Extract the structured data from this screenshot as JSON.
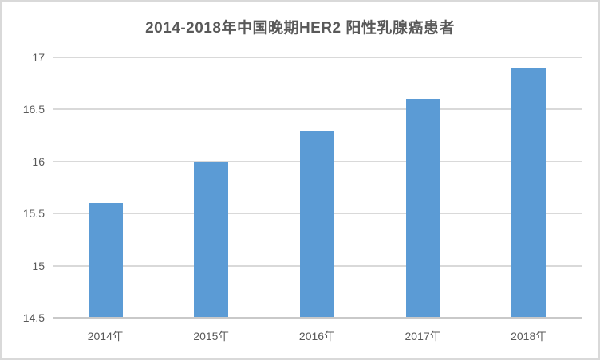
{
  "chart_data": {
    "type": "bar",
    "title": "2014-2018年中国晚期HER2 阳性乳腺癌患者",
    "categories": [
      "2014年",
      "2015年",
      "2016年",
      "2017年",
      "2018年"
    ],
    "values": [
      15.6,
      16.0,
      16.3,
      16.6,
      16.9
    ],
    "xlabel": "",
    "ylabel": "",
    "ylim": [
      14.5,
      17
    ],
    "ytick_step": 0.5,
    "ytick_labels": [
      "14.5",
      "15",
      "15.5",
      "16",
      "16.5",
      "17"
    ],
    "grid": "horizontal",
    "legend": "none",
    "bar_color": "#5b9bd5"
  },
  "colors": {
    "bar": "#5b9bd5",
    "title_text": "#595959",
    "axis_text": "#595959",
    "gridline": "#d9d9d9",
    "axis_line": "#c9c9c9",
    "chart_border": "#d9d9d9",
    "background": "#ffffff"
  }
}
